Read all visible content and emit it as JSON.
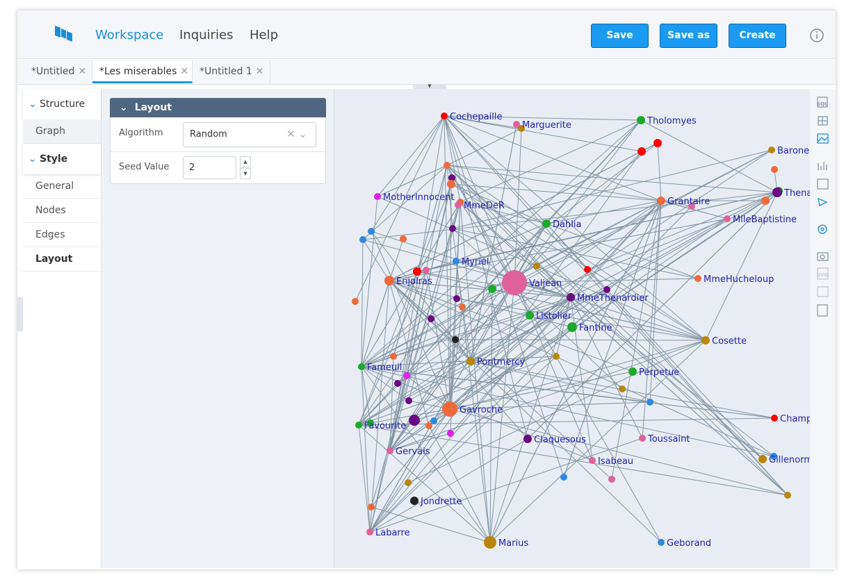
{
  "header": {
    "nav": [
      "Workspace",
      "Inquiries",
      "Help"
    ],
    "buttons": [
      "Save",
      "Save as",
      "Create"
    ]
  },
  "tabs": [
    "*Untitled",
    "*Les miserables",
    "*Untitled 1"
  ],
  "sidebar": {
    "sections": [
      {
        "title": "Structure",
        "items": [
          "Graph"
        ]
      },
      {
        "title": "Style",
        "items": [
          "General",
          "Nodes",
          "Edges",
          "Layout"
        ]
      }
    ]
  },
  "panel": {
    "title": "Layout",
    "fields": [
      {
        "label": "Algorithm",
        "value": "Random"
      },
      {
        "label": "Seed Value",
        "value": 2
      }
    ]
  },
  "graph": {
    "nodes": [
      "Cochepaille",
      "Marguerite",
      "Tholomyes",
      "Barone",
      "MotherInnocent",
      "MmeDeR",
      "Grantaire",
      "Thena",
      "MlleBaptistine",
      "Dahlia",
      "Myriel",
      "Enjolras",
      "Valjean",
      "MmeHucheloup",
      "MmeThenardier",
      "Listolier",
      "Fantine",
      "Cosette",
      "Fameuil",
      "Pontmercy",
      "Perpetue",
      "Gavroche",
      "Favourite",
      "Champ",
      "Claquesous",
      "Toussaint",
      "Gervais",
      "Isabeau",
      "Gillenorm",
      "Jondrette",
      "Labarre",
      "Marius",
      "Geborand"
    ]
  },
  "toolbar": [
    "SQL",
    "SVG"
  ]
}
